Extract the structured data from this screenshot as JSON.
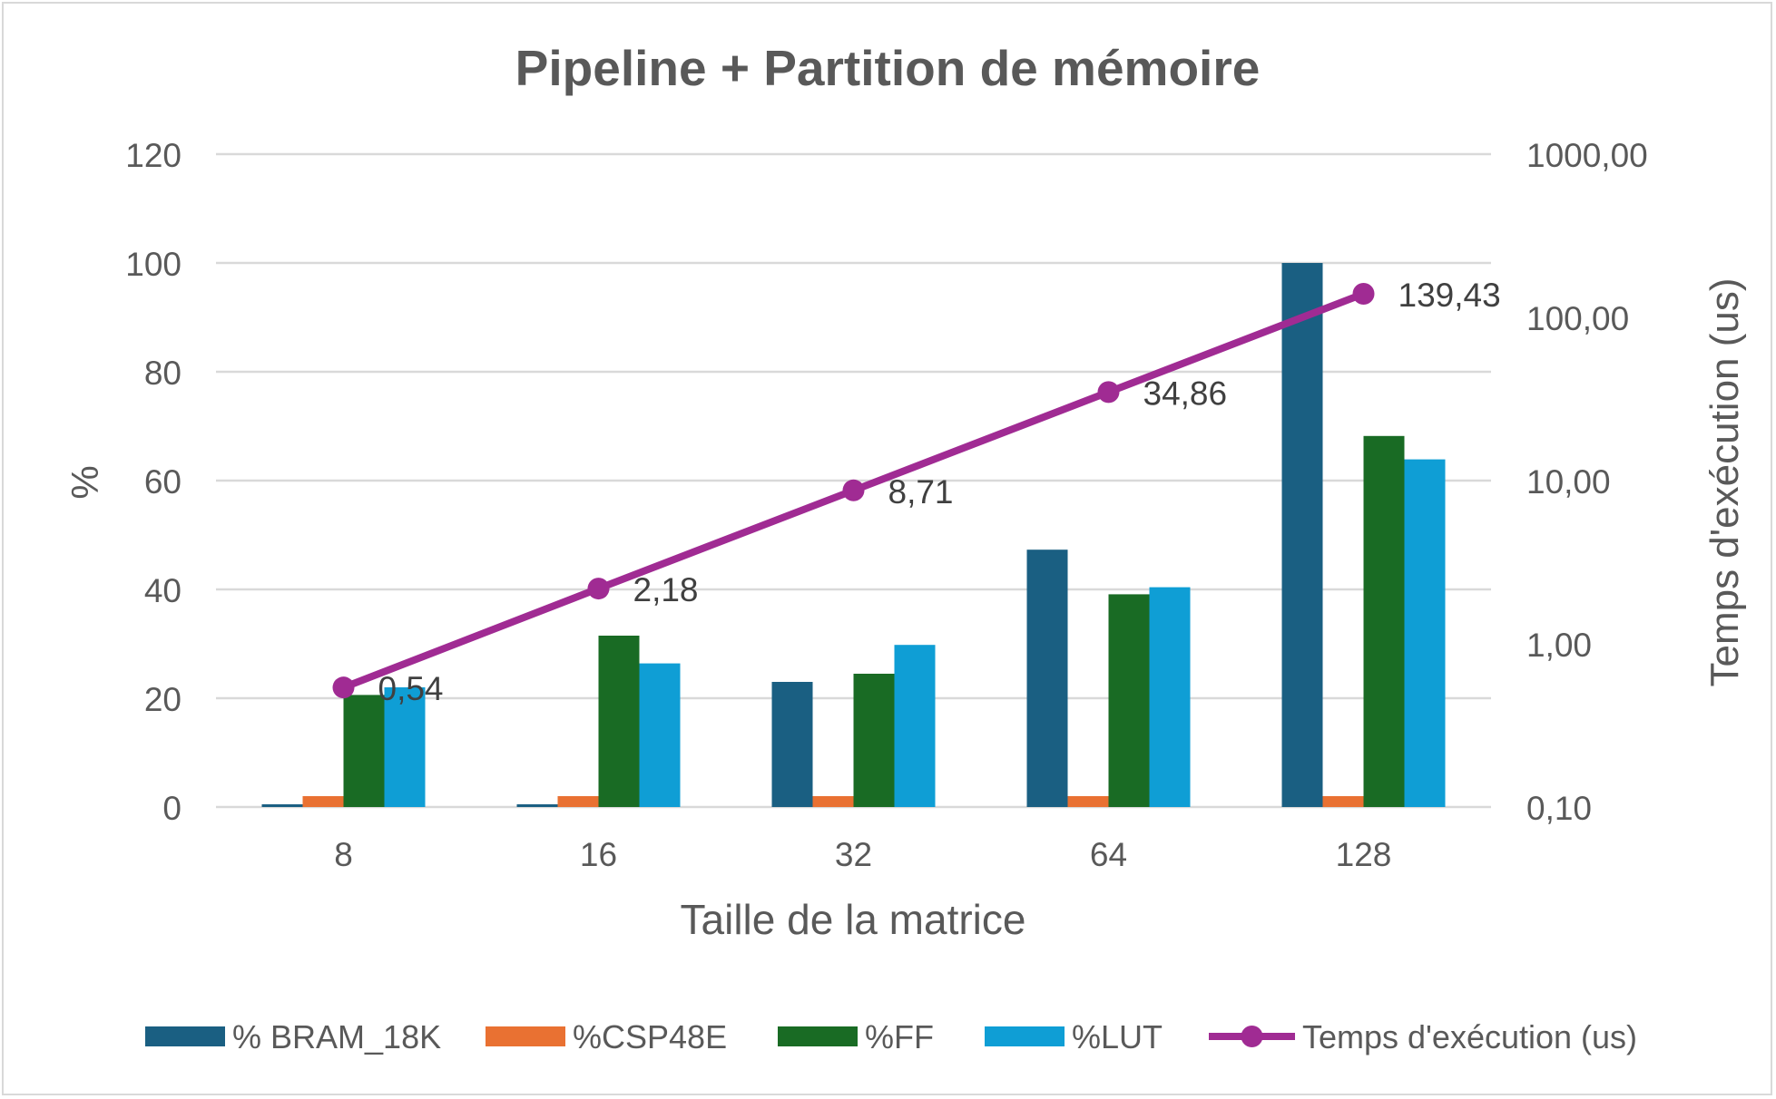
{
  "chart_data": {
    "type": "bar",
    "title": "Pipeline + Partition de mémoire",
    "xlabel": "Taille de la matrice",
    "ylabel": "%",
    "y2label": "Temps d'exécution (us)",
    "categories": [
      "8",
      "16",
      "32",
      "64",
      "128"
    ],
    "ylim": [
      0,
      120
    ],
    "yticks": [
      "0",
      "20",
      "40",
      "60",
      "80",
      "100",
      "120"
    ],
    "y2scale": "log",
    "y2lim": [
      0.1,
      1000
    ],
    "y2ticks": [
      "0,10",
      "1,00",
      "10,00",
      "100,00",
      "1000,00"
    ],
    "gridlines": true,
    "legend_position": "bottom",
    "series": [
      {
        "name": "% BRAM_18K",
        "type": "bar",
        "axis": "left",
        "color": "#1a5f82",
        "values": [
          0.5,
          0.5,
          23,
          47.3,
          100
        ]
      },
      {
        "name": "%CSP48E",
        "type": "bar",
        "axis": "left",
        "color": "#e97132",
        "values": [
          2,
          2,
          2,
          2,
          2
        ]
      },
      {
        "name": "%FF",
        "type": "bar",
        "axis": "left",
        "color": "#196b24",
        "values": [
          20.6,
          31.5,
          24.5,
          39.1,
          68.2
        ]
      },
      {
        "name": "%LUT",
        "type": "bar",
        "axis": "left",
        "color": "#0f9ed5",
        "values": [
          22,
          26.4,
          29.8,
          40.4,
          63.9
        ]
      },
      {
        "name": "Temps d'exécution (us)",
        "type": "line",
        "axis": "right",
        "color": "#a02b93",
        "values": [
          0.54,
          2.18,
          8.71,
          34.86,
          139.43
        ],
        "labels": [
          "0,54",
          "2,18",
          "8,71",
          "34,86",
          "139,43"
        ]
      }
    ]
  }
}
